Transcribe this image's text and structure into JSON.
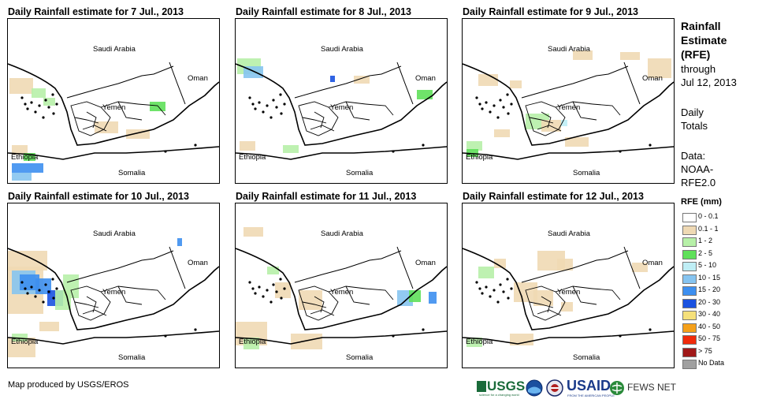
{
  "panels": [
    {
      "title": "Daily Rainfall estimate for 7 Jul., 2013"
    },
    {
      "title": "Daily Rainfall estimate for 8 Jul., 2013"
    },
    {
      "title": "Daily Rainfall estimate for 9 Jul., 2013"
    },
    {
      "title": "Daily Rainfall estimate for 10 Jul., 2013"
    },
    {
      "title": "Daily Rainfall estimate for 11 Jul., 2013"
    },
    {
      "title": "Daily Rainfall estimate for 12 Jul., 2013"
    }
  ],
  "map_labels": {
    "saudi": "Saudi Arabia",
    "oman": "Oman",
    "yemen": "Yemen",
    "ethiopia": "Ethiopia",
    "somalia": "Somalia"
  },
  "sidebar": {
    "title_line1": "Rainfall",
    "title_line2": "Estimate",
    "title_line3": "(RFE)",
    "through": "through",
    "through_date": "Jul 12, 2013",
    "daily": "Daily",
    "totals": "Totals",
    "data_label": "Data:",
    "data_source1": "NOAA-",
    "data_source2": "RFE2.0"
  },
  "legend": {
    "title": "RFE (mm)",
    "items": [
      {
        "label": "0 - 0.1",
        "color": "#ffffff"
      },
      {
        "label": "0.1 - 1",
        "color": "#efd9b4"
      },
      {
        "label": "1 - 2",
        "color": "#b7f0a8"
      },
      {
        "label": "2 - 5",
        "color": "#5fe05a"
      },
      {
        "label": "5 - 10",
        "color": "#bfeef5"
      },
      {
        "label": "10 - 15",
        "color": "#86c4f0"
      },
      {
        "label": "15 - 20",
        "color": "#3d8ff0"
      },
      {
        "label": "20 - 30",
        "color": "#1a52e0"
      },
      {
        "label": "30 - 40",
        "color": "#f5e07a"
      },
      {
        "label": "40 - 50",
        "color": "#f5a01a"
      },
      {
        "label": "50 - 75",
        "color": "#f02a0a"
      },
      {
        "label": "> 75",
        "color": "#a01818"
      },
      {
        "label": "No Data",
        "color": "#a0a0a0"
      }
    ]
  },
  "footer": {
    "credit": "Map produced by USGS/EROS",
    "logos": {
      "usgs": "USGS",
      "usgs_tagline": "science for a changing world",
      "usaid": "USAID",
      "usaid_tagline": "FROM THE AMERICAN PEOPLE",
      "fewsnet": "FEWS NET"
    }
  }
}
